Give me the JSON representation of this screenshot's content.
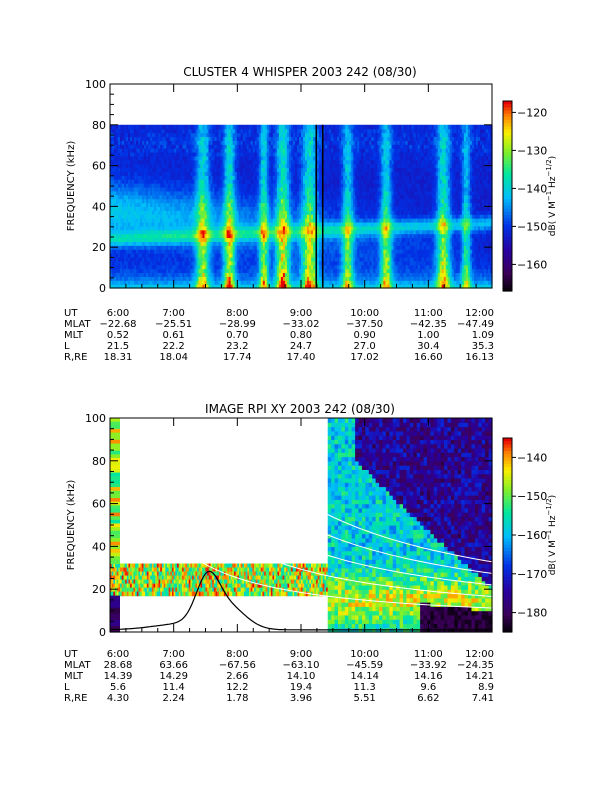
{
  "chart_data": [
    {
      "type": "heatmap",
      "title": "CLUSTER 4 WHISPER 2003 242 (08/30)",
      "ylabel": "FREQUENCY (kHz)",
      "ylim": [
        0,
        100
      ],
      "yticks": [
        "0",
        "20",
        "40",
        "60",
        "80",
        "100"
      ],
      "xlim": [
        "6:00",
        "12:00"
      ],
      "data_freq_max": 80,
      "colorbar": {
        "label": "dB( V M⁻¹ Hz⁻¹ᐟ²)",
        "label_parts": [
          "dB( V M",
          "−1",
          " Hz",
          "−1/2",
          ")"
        ],
        "ticks": [
          "−120",
          "−130",
          "−140",
          "−150",
          "−160"
        ],
        "range": [
          -167,
          -117
        ]
      },
      "table": {
        "row_labels": [
          "UT",
          "MLAT",
          "MLT",
          "L",
          "R,RE"
        ],
        "columns": [
          [
            "6:00",
            "−22.68",
            "0.52",
            "21.5",
            "18.31"
          ],
          [
            "7:00",
            "−25.51",
            "0.61",
            "22.2",
            "18.04"
          ],
          [
            "8:00",
            "−28.99",
            "0.70",
            "23.2",
            "17.74"
          ],
          [
            "9:00",
            "−33.02",
            "0.80",
            "24.7",
            "17.40"
          ],
          [
            "10:00",
            "−37.50",
            "0.90",
            "27.0",
            "17.02"
          ],
          [
            "11:00",
            "−42.35",
            "1.00",
            "30.4",
            "16.60"
          ],
          [
            "12:00",
            "−47.49",
            "1.09",
            "35.3",
            "16.13"
          ]
        ]
      }
    },
    {
      "type": "heatmap",
      "title": "IMAGE RPI XY 2003 242 (08/30)",
      "ylabel": "FREQUENCY (kHz)",
      "ylim": [
        0,
        100
      ],
      "yticks": [
        "0",
        "20",
        "40",
        "60",
        "80",
        "100"
      ],
      "xlim": [
        "6:00",
        "12:00"
      ],
      "colorbar": {
        "label": "dB( V M⁻¹ Hz⁻¹ᐟ²)",
        "label_parts": [
          "dB( V M",
          "−1",
          " Hz",
          "−1/2",
          ")"
        ],
        "ticks": [
          "−140",
          "−150",
          "−160",
          "−170",
          "−180"
        ],
        "range": [
          -185,
          -135
        ]
      },
      "table": {
        "row_labels": [
          "UT",
          "MLAT",
          "MLT",
          "L",
          "R,RE"
        ],
        "columns": [
          [
            "6:00",
            "28.68",
            "14.39",
            "5.6",
            "4.30"
          ],
          [
            "7:00",
            "63.66",
            "14.29",
            "11.4",
            "2.24"
          ],
          [
            "8:00",
            "−67.56",
            "2.66",
            "12.2",
            "1.78"
          ],
          [
            "9:00",
            "−63.10",
            "14.10",
            "19.4",
            "3.96"
          ],
          [
            "10:00",
            "−45.59",
            "14.14",
            "11.3",
            "5.51"
          ],
          [
            "11:00",
            "−33.92",
            "14.16",
            "9.6",
            "6.62"
          ],
          [
            "12:00",
            "−24.35",
            "14.21",
            "8.9",
            "7.41"
          ]
        ]
      }
    }
  ]
}
